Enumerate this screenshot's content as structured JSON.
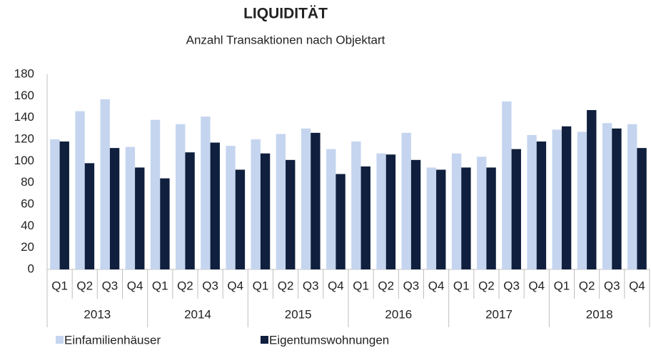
{
  "chart_data": {
    "type": "bar",
    "title": "LIQUIDITÄT",
    "subtitle": "Anzahl Transaktionen nach Objektart",
    "categories": [
      "Q1",
      "Q2",
      "Q3",
      "Q4",
      "Q1",
      "Q2",
      "Q3",
      "Q4",
      "Q1",
      "Q2",
      "Q3",
      "Q4",
      "Q1",
      "Q2",
      "Q3",
      "Q4",
      "Q1",
      "Q2",
      "Q3",
      "Q4",
      "Q1",
      "Q2",
      "Q3",
      "Q4"
    ],
    "groups": [
      "2013",
      "2014",
      "2015",
      "2016",
      "2017",
      "2018"
    ],
    "series": [
      {
        "name": "Einfamilienhäuser",
        "color": "#c5d5ef",
        "values": [
          120,
          146,
          157,
          113,
          138,
          134,
          141,
          114,
          120,
          125,
          130,
          111,
          118,
          107,
          126,
          94,
          107,
          104,
          155,
          124,
          129,
          127,
          135,
          134
        ]
      },
      {
        "name": "Eigentumswohnungen",
        "color": "#0f1f3d",
        "values": [
          118,
          98,
          112,
          94,
          84,
          108,
          117,
          92,
          107,
          101,
          126,
          88,
          95,
          106,
          101,
          92,
          94,
          94,
          111,
          118,
          132,
          147,
          130,
          112
        ]
      }
    ],
    "ylim": [
      0,
      180
    ],
    "yticks": [
      0,
      20,
      40,
      60,
      80,
      100,
      120,
      140,
      160,
      180
    ],
    "grid": false
  }
}
